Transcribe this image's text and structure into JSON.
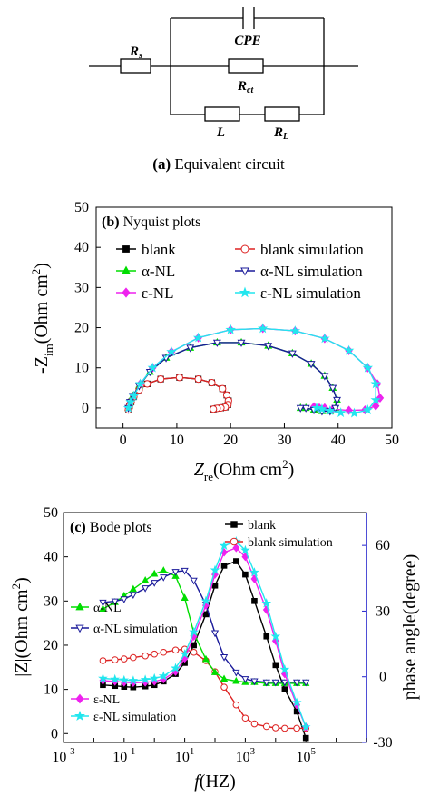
{
  "circuit": {
    "caption_letter": "(a)",
    "caption_text": "Equivalent circuit",
    "labels": {
      "rs_main": "R",
      "rs_sub": "s",
      "cpe": "CPE",
      "rct_main": "R",
      "rct_sub": "ct",
      "l": "L",
      "rl_main": "R",
      "rl_sub": "L"
    }
  },
  "chart_data": [
    {
      "type": "line",
      "panel_label": "(b)",
      "title": "Nyquist plots",
      "xlabel_main": "Z",
      "xlabel_sub": "re",
      "xlabel_unit": "(Ohm cm",
      "xlabel_sup": "2",
      "xlabel_close": ")",
      "ylabel_main": "-Z",
      "ylabel_sub": "im",
      "ylabel_unit": "(Ohm cm",
      "ylabel_sup": "2",
      "ylabel_close": ")",
      "xlim": [
        -5,
        50
      ],
      "ylim": [
        -5,
        50
      ],
      "xticks": [
        0,
        10,
        20,
        30,
        40,
        50
      ],
      "yticks": [
        0,
        10,
        20,
        30,
        40,
        50
      ],
      "legend_position": "top",
      "series": [
        {
          "name": "blank",
          "color": "#000000",
          "marker": "square",
          "filled": true,
          "x": [
            1.0,
            1.2,
            1.5,
            2.0,
            3.0,
            4.5,
            7.0,
            10.5,
            14.0,
            16.5,
            18.5,
            19.3,
            19.6,
            19.5,
            19.0,
            18.2,
            17.5,
            16.8
          ],
          "y": [
            -0.5,
            0.5,
            1.5,
            2.8,
            4.5,
            6.0,
            7.2,
            7.6,
            7.2,
            6.3,
            4.8,
            3.2,
            1.8,
            0.8,
            0.2,
            0.0,
            -0.1,
            -0.3
          ]
        },
        {
          "name": "α-NL",
          "color": "#00dd00",
          "marker": "triangle-up",
          "filled": true,
          "x": [
            1.0,
            1.3,
            1.8,
            3.0,
            5.0,
            8.0,
            12.5,
            17.5,
            22.0,
            27.0,
            31.5,
            35.0,
            37.5,
            39.0,
            39.8,
            39.5,
            38.5,
            37.0,
            35.5,
            34.0,
            33.0
          ],
          "y": [
            0.0,
            1.5,
            3.0,
            5.5,
            9.0,
            12.5,
            15.0,
            16.3,
            16.3,
            15.5,
            13.6,
            11.0,
            8.0,
            5.0,
            2.0,
            0.0,
            -0.8,
            -0.8,
            -0.5,
            0.0,
            0.0
          ]
        },
        {
          "name": "ε-NL",
          "color": "#ee22ee",
          "marker": "diamond",
          "filled": true,
          "x": [
            1.0,
            1.4,
            2.0,
            3.2,
            5.5,
            9.0,
            14.0,
            20.0,
            26.0,
            32.0,
            37.5,
            42.0,
            45.5,
            47.3,
            47.8,
            47.0,
            45.0,
            42.0,
            39.0,
            37.5,
            36.5,
            35.5
          ],
          "y": [
            0.0,
            1.5,
            3.0,
            6.0,
            10.0,
            14.0,
            17.5,
            19.5,
            19.8,
            19.2,
            17.3,
            14.3,
            10.0,
            6.0,
            2.5,
            0.5,
            -0.5,
            -0.6,
            -0.3,
            0.0,
            0.0,
            0.3
          ]
        },
        {
          "name": "blank simulation",
          "color": "#dd2222",
          "marker": "circle",
          "filled": false,
          "x": [
            1.0,
            1.2,
            1.5,
            2.0,
            3.0,
            4.5,
            7.0,
            10.5,
            14.0,
            16.5,
            18.5,
            19.3,
            19.6,
            19.5,
            19.0,
            18.2,
            17.5,
            16.8
          ],
          "y": [
            -0.5,
            0.5,
            1.5,
            2.8,
            4.5,
            6.0,
            7.2,
            7.6,
            7.2,
            6.3,
            4.8,
            3.2,
            1.8,
            0.8,
            0.2,
            0.0,
            -0.1,
            -0.3
          ]
        },
        {
          "name": "α-NL simulation",
          "color": "#1a1a9a",
          "marker": "triangle-down",
          "filled": false,
          "x": [
            1.0,
            1.3,
            1.8,
            3.0,
            5.0,
            8.0,
            12.5,
            17.5,
            22.0,
            27.0,
            31.5,
            35.0,
            37.5,
            39.0,
            39.8,
            39.5,
            38.5,
            37.0,
            35.5,
            34.0,
            33.0
          ],
          "y": [
            0.0,
            1.5,
            3.0,
            5.5,
            9.0,
            12.5,
            15.0,
            16.3,
            16.3,
            15.5,
            13.6,
            11.0,
            8.0,
            5.0,
            2.0,
            0.0,
            -0.8,
            -0.8,
            -0.5,
            0.0,
            0.0
          ]
        },
        {
          "name": "ε-NL simulation",
          "color": "#22e6ee",
          "marker": "star",
          "filled": true,
          "x": [
            1.0,
            1.4,
            2.0,
            3.2,
            5.5,
            9.0,
            14.0,
            20.0,
            26.0,
            32.0,
            37.5,
            42.0,
            45.5,
            47.0,
            47.0,
            45.5,
            43.0,
            40.5,
            38.5,
            37.0,
            36.0
          ],
          "y": [
            0.0,
            1.5,
            3.0,
            6.0,
            10.0,
            14.0,
            17.5,
            19.5,
            19.8,
            19.2,
            17.3,
            14.3,
            10.0,
            6.0,
            2.0,
            -0.5,
            -1.3,
            -1.2,
            -0.7,
            -0.3,
            0.0
          ]
        }
      ]
    },
    {
      "type": "line",
      "panel_label": "(c)",
      "title": "Bode plots",
      "xlabel_main": "f",
      "xlabel_unit": "(HZ)",
      "ylabel_left_main": "|Z|",
      "ylabel_left_unit": "(Ohm cm",
      "ylabel_left_sup": "2",
      "ylabel_left_close": ")",
      "ylabel_right": "phase angle(degree)",
      "xscale": "log",
      "xlim": [
        0.001,
        10000000
      ],
      "ylim_left": [
        -2,
        50
      ],
      "ylim_right": [
        -30,
        75
      ],
      "xticks_exp": [
        -3,
        -1,
        1,
        3,
        5
      ],
      "xticks_base": "10",
      "yticks_left": [
        0,
        10,
        20,
        30,
        40,
        50
      ],
      "yticks_right": [
        -30,
        0,
        30,
        60
      ],
      "right_axis_color": "#2222cc",
      "series": [
        {
          "name": "blank",
          "axis": "left",
          "color": "#000000",
          "marker": "square",
          "filled": true,
          "f": [
            0.02,
            0.05,
            0.1,
            0.2,
            0.5,
            1,
            2,
            5,
            10,
            20,
            50,
            100,
            200,
            500,
            1000,
            2000,
            5000,
            10000,
            20000,
            50000,
            100000
          ],
          "values": [
            11.0,
            10.8,
            10.6,
            10.5,
            10.7,
            11.0,
            11.8,
            13.5,
            16.0,
            20.0,
            27.0,
            33.5,
            38.0,
            39.0,
            36.0,
            30.0,
            22.0,
            15.5,
            10.0,
            5.0,
            -1.0
          ]
        },
        {
          "name": "blank simulation",
          "axis": "left",
          "color": "#dd2222",
          "marker": "circle",
          "filled": false,
          "f": [
            0.02,
            0.05,
            0.1,
            0.2,
            0.5,
            1,
            2,
            5,
            10,
            20,
            50,
            100,
            200,
            500,
            1000,
            2000,
            5000,
            10000,
            20000,
            50000,
            100000
          ],
          "values": [
            16.5,
            16.7,
            16.9,
            17.2,
            17.6,
            18.0,
            18.4,
            18.9,
            19.1,
            18.4,
            16.5,
            14.0,
            10.5,
            6.5,
            3.5,
            2.2,
            1.6,
            1.3,
            1.2,
            1.2,
            1.2
          ]
        },
        {
          "name": "α-NL",
          "axis": "right",
          "color": "#00dd00",
          "marker": "triangle-up",
          "filled": true,
          "f": [
            0.02,
            0.05,
            0.1,
            0.2,
            0.5,
            1,
            2,
            5,
            10,
            20,
            50,
            100,
            200,
            500,
            1000,
            2000,
            5000,
            10000,
            20000,
            50000,
            100000
          ],
          "values": [
            31.0,
            34.0,
            37.0,
            40.0,
            44.0,
            47.0,
            48.5,
            46.0,
            36.0,
            20.0,
            8.0,
            2.0,
            -1.0,
            -2.0,
            -2.5,
            -2.5,
            -3.0,
            -3.0,
            -3.0,
            -3.0,
            -3.0
          ]
        },
        {
          "name": "α-NL simulation",
          "axis": "right",
          "color": "#1a1a9a",
          "marker": "triangle-down",
          "filled": false,
          "f": [
            0.02,
            0.05,
            0.1,
            0.2,
            0.5,
            1,
            2,
            5,
            10,
            20,
            50,
            100,
            200,
            500,
            1000,
            2000,
            5000,
            10000,
            20000,
            50000,
            100000
          ],
          "values": [
            34.0,
            34.5,
            35.5,
            37.5,
            40.5,
            43.0,
            45.5,
            48.0,
            48.5,
            44.0,
            33.0,
            20.0,
            9.0,
            2.0,
            -1.0,
            -2.0,
            -2.5,
            -2.5,
            -2.5,
            -2.5,
            -2.5
          ]
        },
        {
          "name": "ε-NL",
          "axis": "left",
          "color": "#ee22ee",
          "marker": "diamond",
          "filled": true,
          "f": [
            0.02,
            0.05,
            0.1,
            0.2,
            0.5,
            1,
            2,
            5,
            10,
            20,
            50,
            100,
            200,
            500,
            1000,
            2000,
            5000,
            10000,
            20000,
            50000,
            100000
          ],
          "values": [
            12.0,
            11.8,
            11.6,
            11.5,
            11.6,
            11.8,
            12.3,
            14.0,
            17.0,
            22.0,
            29.0,
            36.0,
            41.0,
            42.0,
            40.0,
            35.0,
            28.0,
            21.0,
            13.5,
            6.5,
            1.5
          ]
        },
        {
          "name": "ε-NL simulation",
          "axis": "left",
          "color": "#22e6ee",
          "marker": "star",
          "filled": true,
          "f": [
            0.02,
            0.05,
            0.1,
            0.2,
            0.5,
            1,
            2,
            5,
            10,
            20,
            50,
            100,
            200,
            500,
            1000,
            2000,
            5000,
            10000,
            20000,
            50000,
            100000
          ],
          "values": [
            12.5,
            12.3,
            12.1,
            12.0,
            12.2,
            12.5,
            13.0,
            14.8,
            18.0,
            23.0,
            30.0,
            37.0,
            42.5,
            43.5,
            41.5,
            36.5,
            29.5,
            22.0,
            14.5,
            7.0,
            1.5
          ]
        }
      ],
      "legend_entries": [
        {
          "name": "blank",
          "color": "#000000",
          "marker": "square",
          "filled": true
        },
        {
          "name": "blank simulation",
          "color": "#dd2222",
          "marker": "circle",
          "filled": false
        },
        {
          "name": "α-NL",
          "color": "#00dd00",
          "marker": "triangle-up",
          "filled": true
        },
        {
          "name": "α-NL simulation",
          "color": "#1a1a9a",
          "marker": "triangle-down",
          "filled": false
        },
        {
          "name": "ε-NL",
          "color": "#ee22ee",
          "marker": "diamond",
          "filled": true
        },
        {
          "name": "ε-NL simulation",
          "color": "#22e6ee",
          "marker": "star",
          "filled": true
        }
      ]
    }
  ]
}
